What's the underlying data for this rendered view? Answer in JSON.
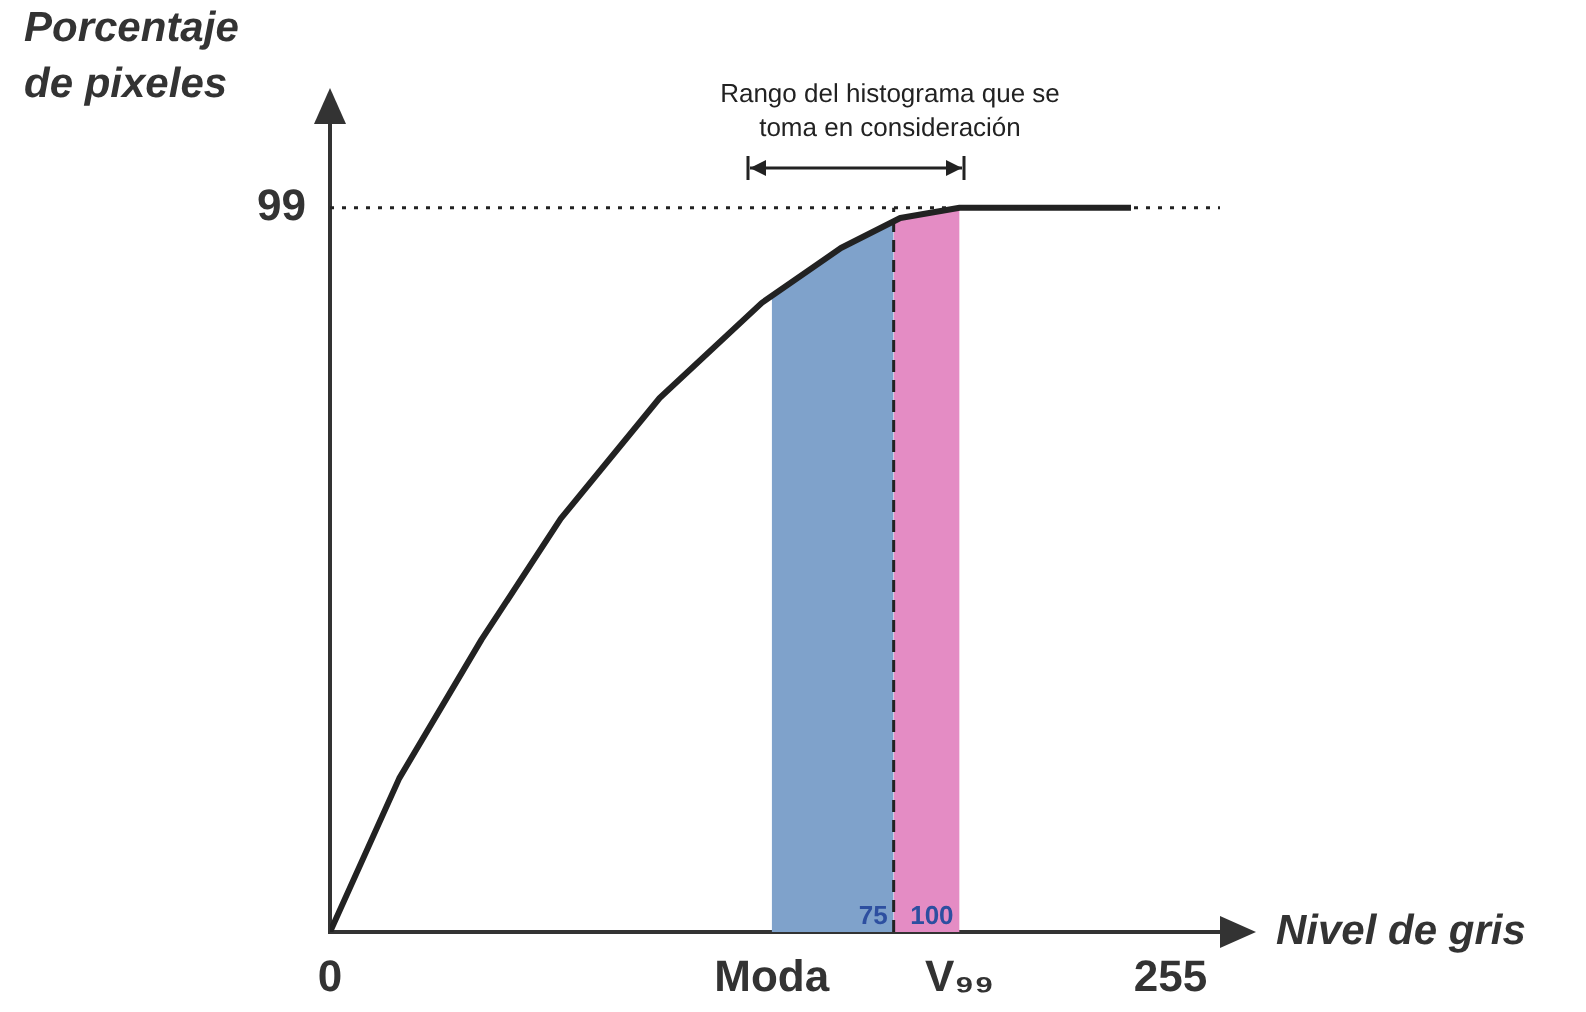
{
  "chart_data": {
    "type": "line",
    "xlabel": "Nivel de gris",
    "ylabel": "Porcentaje de pixeles",
    "annotations": [
      "Rango del histograma que se toma en consideración",
      {
        "text": "75",
        "x": 171,
        "y": 0
      },
      {
        "text": "100",
        "x": 191,
        "y": 0
      }
    ],
    "xlim": [
      0,
      270
    ],
    "xticks": [
      0,
      {
        "value": 134,
        "label": "Moda"
      },
      {
        "value": 191,
        "label": "V₉₉"
      },
      255
    ],
    "ylim": [
      0,
      111
    ],
    "yticks": [
      99
    ],
    "series": [
      {
        "type": "area",
        "color": "#7fa2cb",
        "x": [
          134,
          150,
          171
        ],
        "values": [
          87,
          92,
          97
        ]
      },
      {
        "type": "area",
        "color": "#e48cc4",
        "x": [
          171,
          182,
          191
        ],
        "values": [
          97,
          98.5,
          99
        ]
      },
      {
        "type": "line",
        "color": "#222222",
        "x": [
          0,
          21,
          46,
          70,
          100,
          131,
          155,
          173,
          191,
          243
        ],
        "values": [
          0,
          21,
          40,
          56.5,
          73,
          86,
          93.5,
          97.6,
          99,
          99
        ]
      }
    ],
    "ref_lines": [
      {
        "axis": "x",
        "value": 171,
        "line_style": "dashed",
        "color": "#222222"
      },
      {
        "axis": "y",
        "value": 99,
        "line_style": "dotted",
        "color": "#222222"
      }
    ],
    "grid": false,
    "legend": false,
    "marker": "none"
  }
}
